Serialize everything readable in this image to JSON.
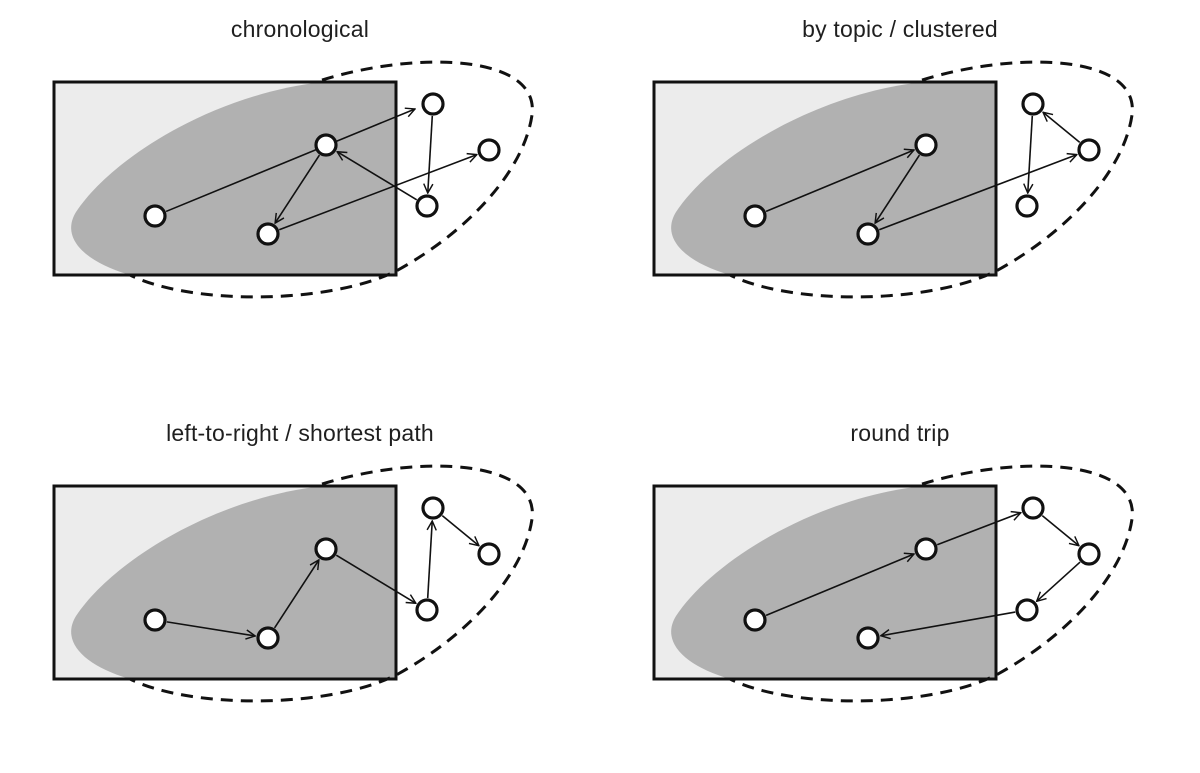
{
  "panels": [
    {
      "title": "chronological",
      "connections": [
        [
          0,
          2
        ],
        [
          2,
          5
        ],
        [
          5,
          3
        ],
        [
          3,
          1
        ],
        [
          1,
          4
        ],
        [
          4,
          6
        ]
      ]
    },
    {
      "title": "by topic / clustered",
      "connections": [
        [
          0,
          1
        ],
        [
          1,
          3
        ],
        [
          3,
          6
        ],
        [
          6,
          5
        ],
        [
          5,
          4
        ]
      ]
    },
    {
      "title": "left-to-right / shortest path",
      "connections": [
        [
          0,
          3
        ],
        [
          3,
          1
        ],
        [
          1,
          4
        ],
        [
          4,
          5
        ],
        [
          5,
          6
        ]
      ]
    },
    {
      "title": "round trip",
      "connections": [
        [
          0,
          1
        ],
        [
          1,
          5
        ],
        [
          5,
          6
        ],
        [
          6,
          4
        ],
        [
          4,
          3
        ]
      ]
    }
  ]
}
